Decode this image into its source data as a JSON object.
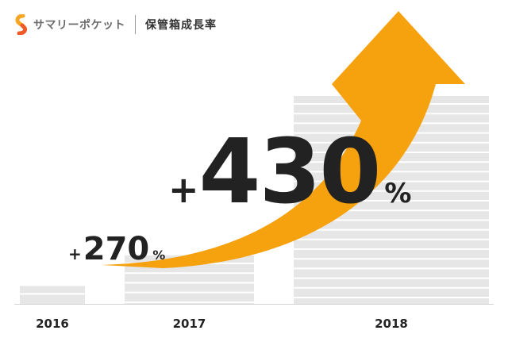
{
  "header": {
    "brand": "サマリーポケット",
    "title": "保管箱成長率",
    "brand_colors": [
      "#f6a623",
      "#ef5a28"
    ]
  },
  "chart_data": {
    "type": "bar",
    "title": "保管箱成長率",
    "categories": [
      "2016",
      "2017",
      "2018"
    ],
    "values": [
      1,
      2.7,
      11.6
    ],
    "growth_labels": [
      {
        "category": "2017",
        "sign": "+",
        "number": "270",
        "unit": "%"
      },
      {
        "category": "2018",
        "sign": "+",
        "number": "430",
        "unit": "%"
      }
    ],
    "bar_color": "#e6e6e6",
    "arrow_color": "#f6a10e",
    "text_color": "#222222",
    "grid": false
  }
}
